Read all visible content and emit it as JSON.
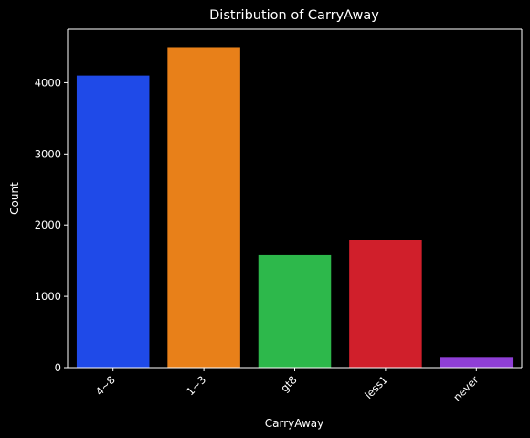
{
  "chart_data": {
    "type": "bar",
    "title": "Distribution of CarryAway",
    "xlabel": "CarryAway",
    "ylabel": "Count",
    "categories": [
      "4~8",
      "1~3",
      "gt8",
      "less1",
      "never"
    ],
    "values": [
      4100,
      4500,
      1580,
      1790,
      150
    ],
    "colors": [
      "#1f4ae8",
      "#e88019",
      "#2db84b",
      "#d01f2b",
      "#8f3fd6"
    ],
    "ylim": [
      0,
      4750
    ],
    "yticks": [
      0,
      1000,
      2000,
      3000,
      4000
    ],
    "background": "#000000",
    "grid": false,
    "x_tick_rotation": -45
  }
}
